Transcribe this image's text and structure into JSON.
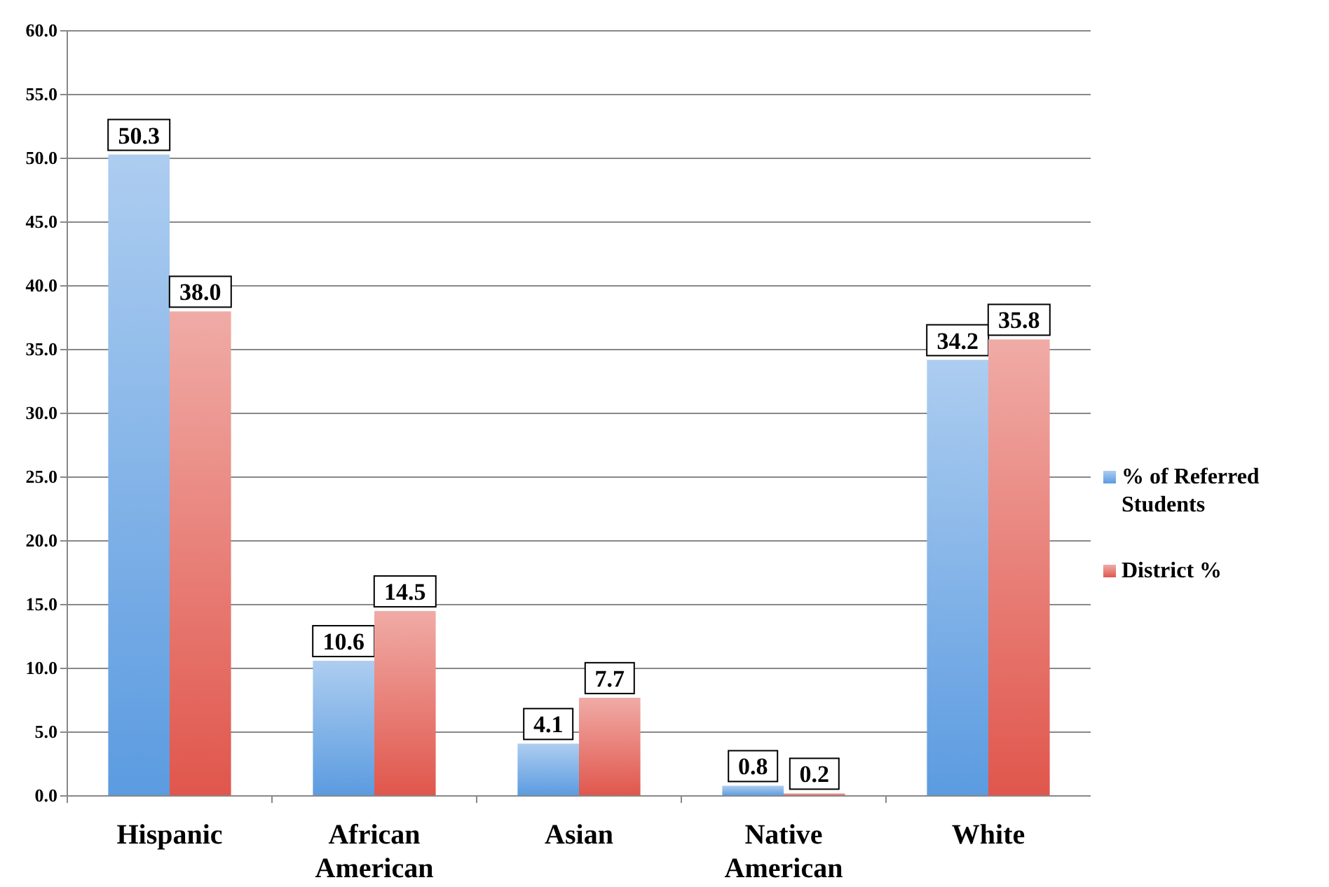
{
  "chart_data": {
    "type": "bar",
    "categories": [
      "Hispanic",
      "African American",
      "Asian",
      "Native American",
      "White"
    ],
    "series": [
      {
        "name": "% of Referred Students",
        "color": "#5b9be0",
        "values": [
          50.3,
          10.6,
          4.1,
          0.8,
          34.2
        ],
        "value_labels": [
          "50.3",
          "10.6",
          "4.1",
          "0.8",
          "34.2"
        ]
      },
      {
        "name": "District %",
        "color": "#e0564c",
        "values": [
          38.0,
          14.5,
          7.7,
          0.2,
          35.8
        ],
        "value_labels": [
          "38.0",
          "14.5",
          "7.7",
          "0.2",
          "35.8"
        ]
      }
    ],
    "ylim": [
      0,
      60
    ],
    "yticks": [
      {
        "value": 0,
        "label": "0.0"
      },
      {
        "value": 5,
        "label": "5.0"
      },
      {
        "value": 10,
        "label": "10.0"
      },
      {
        "value": 15,
        "label": "15.0"
      },
      {
        "value": 20,
        "label": "20.0"
      },
      {
        "value": 25,
        "label": "25.0"
      },
      {
        "value": 30,
        "label": "30.0"
      },
      {
        "value": 35,
        "label": "35.0"
      },
      {
        "value": 40,
        "label": "40.0"
      },
      {
        "value": 45,
        "label": "45.0"
      },
      {
        "value": 50,
        "label": "50.0"
      },
      {
        "value": 55,
        "label": "55.0"
      },
      {
        "value": 60,
        "label": "60.0"
      }
    ],
    "grid": "y",
    "legend": "right"
  }
}
